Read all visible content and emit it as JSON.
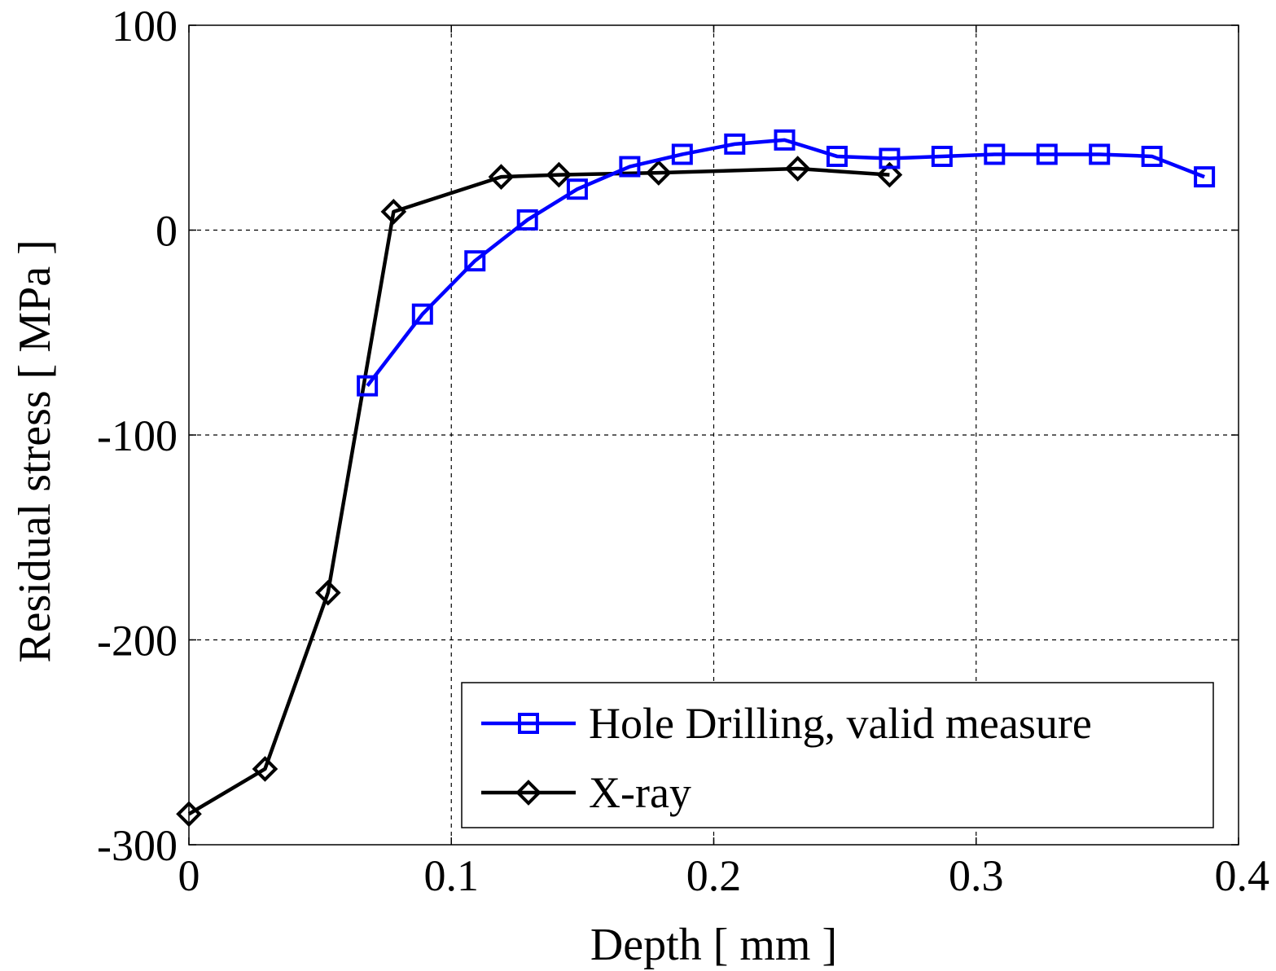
{
  "chart_data": {
    "type": "line",
    "title": "",
    "xlabel": "Depth [ mm ]",
    "ylabel": "Residual stress [ MPa ]",
    "xlim": [
      0,
      0.4
    ],
    "ylim": [
      -300,
      100
    ],
    "xticks": [
      0,
      0.1,
      0.2,
      0.3,
      0.4
    ],
    "xtick_labels": [
      "0",
      "0.1",
      "0.2",
      "0.3",
      "0.4"
    ],
    "yticks": [
      -300,
      -200,
      -100,
      0,
      100
    ],
    "ytick_labels": [
      "-300",
      "-200",
      "-100",
      "0",
      "100"
    ],
    "grid": true,
    "legend_position": "bottom-right",
    "series": [
      {
        "name": "Hole Drilling, valid measure",
        "color": "#0000ff",
        "marker": "square",
        "x": [
          0.068,
          0.089,
          0.109,
          0.129,
          0.148,
          0.168,
          0.188,
          0.208,
          0.227,
          0.247,
          0.267,
          0.287,
          0.307,
          0.327,
          0.347,
          0.367,
          0.387
        ],
        "y": [
          -76,
          -41,
          -15,
          5,
          20,
          31,
          37,
          42,
          44,
          36,
          35,
          36,
          37,
          37,
          37,
          36,
          26
        ]
      },
      {
        "name": "X-ray",
        "color": "#000000",
        "marker": "diamond",
        "x": [
          0.0,
          0.029,
          0.053,
          0.078,
          0.119,
          0.141,
          0.179,
          0.232,
          0.267
        ],
        "y": [
          -285,
          -263,
          -177,
          9,
          26,
          27,
          28,
          30,
          27
        ]
      }
    ]
  }
}
